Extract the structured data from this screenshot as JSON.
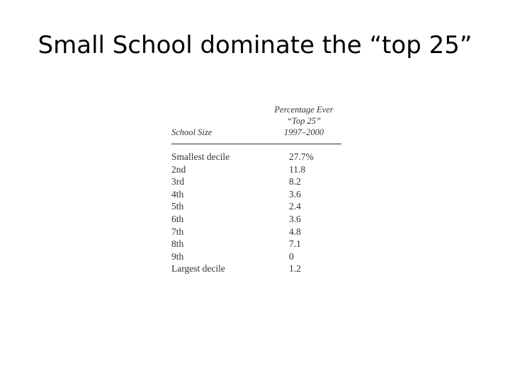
{
  "slide": {
    "title": "Small School dominate the “top 25”"
  },
  "table": {
    "column_header": "School Size",
    "value_header": {
      "line1": "Percentage Ever",
      "line2": "“Top 25”",
      "line3": "1997–2000"
    },
    "rows": [
      {
        "size": "Smallest decile",
        "pct": "27.7%"
      },
      {
        "size": "2nd",
        "pct": "11.8"
      },
      {
        "size": "3rd",
        "pct": "8.2"
      },
      {
        "size": "4th",
        "pct": "3.6"
      },
      {
        "size": "5th",
        "pct": "2.4"
      },
      {
        "size": "6th",
        "pct": "3.6"
      },
      {
        "size": "7th",
        "pct": "4.8"
      },
      {
        "size": "8th",
        "pct": "7.1"
      },
      {
        "size": "9th",
        "pct": "0"
      },
      {
        "size": "Largest decile",
        "pct": "1.2"
      }
    ]
  }
}
